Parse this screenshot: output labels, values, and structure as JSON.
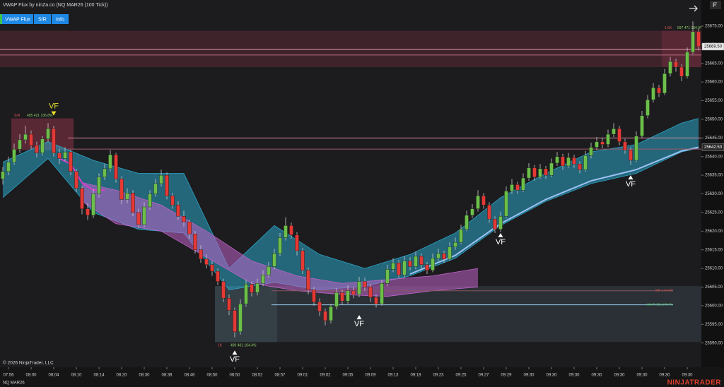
{
  "header": {
    "title": "VWAP Flux by ninZa.co (NQ MAR26 (100 Tick))",
    "buttons": [
      "VWAP Flux",
      "S/R",
      "Info"
    ]
  },
  "footer": {
    "copyright": "© 2026 NinjaTrader, LLC",
    "instrument": "NQ MAR26",
    "brand": "NINJATRADER"
  },
  "chart_data": {
    "type": "candlestick",
    "xlim": [
      -0.5,
      123.5
    ],
    "ylim": [
      25583.5,
      25682
    ],
    "up_color": "#6cc04a",
    "down_color": "#e53935",
    "yticks": [
      {
        "value": 25590,
        "label": "25590.00"
      },
      {
        "value": 25595,
        "label": "25595.00"
      },
      {
        "value": 25600,
        "label": "25600.00"
      },
      {
        "value": 25605,
        "label": "25605.00"
      },
      {
        "value": 25610,
        "label": "25610.00"
      },
      {
        "value": 25615,
        "label": "25615.00"
      },
      {
        "value": 25620,
        "label": "25620.00"
      },
      {
        "value": 25625,
        "label": "25625.00"
      },
      {
        "value": 25630,
        "label": "25630.00"
      },
      {
        "value": 25635,
        "label": "25635.00"
      },
      {
        "value": 25640,
        "label": "25640.00"
      },
      {
        "value": 25645,
        "label": "25645.00"
      },
      {
        "value": 25650,
        "label": "25650.00"
      },
      {
        "value": 25655,
        "label": "25655.00"
      },
      {
        "value": 25660,
        "label": "25660.00"
      },
      {
        "value": 25665,
        "label": "25665.00"
      },
      {
        "value": 25670,
        "label": "25670.00"
      },
      {
        "value": 25675,
        "label": "25675.00"
      }
    ],
    "xticks": [
      {
        "value": 1,
        "label": "07:56"
      },
      {
        "value": 5,
        "label": "08:00"
      },
      {
        "value": 9,
        "label": "08:04"
      },
      {
        "value": 13,
        "label": "08:10"
      },
      {
        "value": 17,
        "label": "08:14"
      },
      {
        "value": 21,
        "label": "08:20"
      },
      {
        "value": 25,
        "label": "08:30"
      },
      {
        "value": 29,
        "label": "08:38"
      },
      {
        "value": 33,
        "label": "08:46"
      },
      {
        "value": 37,
        "label": "08:50"
      },
      {
        "value": 41,
        "label": "08:50"
      },
      {
        "value": 45,
        "label": "08:52"
      },
      {
        "value": 49,
        "label": "08:57"
      },
      {
        "value": 53,
        "label": "09:01"
      },
      {
        "value": 57,
        "label": "09:02"
      },
      {
        "value": 61,
        "label": "09:05"
      },
      {
        "value": 65,
        "label": "09:09"
      },
      {
        "value": 69,
        "label": "09:13"
      },
      {
        "value": 73,
        "label": "09:18"
      },
      {
        "value": 77,
        "label": "09:23"
      },
      {
        "value": 81,
        "label": "09:25"
      },
      {
        "value": 85,
        "label": "09:27"
      },
      {
        "value": 89,
        "label": "09:29"
      },
      {
        "value": 93,
        "label": "09:30"
      },
      {
        "value": 97,
        "label": "09:30"
      },
      {
        "value": 101,
        "label": "09:30"
      },
      {
        "value": 105,
        "label": "09:30"
      },
      {
        "value": 109,
        "label": "09:30"
      },
      {
        "value": 113,
        "label": "09:30"
      },
      {
        "value": 117,
        "label": "09:30"
      },
      {
        "value": 121,
        "label": "09:30"
      }
    ],
    "candles": [
      [
        25634,
        25637.25,
        25632.5,
        25636
      ],
      [
        25636,
        25640,
        25635,
        25638.5
      ],
      [
        25638.5,
        25643.5,
        25637.75,
        25642
      ],
      [
        25642,
        25646,
        25641,
        25644.5
      ],
      [
        25644.5,
        25648.25,
        25643.5,
        25646
      ],
      [
        25646,
        25647,
        25642,
        25643
      ],
      [
        25643,
        25644,
        25639.75,
        25641
      ],
      [
        25641,
        25645.5,
        25640.25,
        25644.75
      ],
      [
        25644.75,
        25649,
        25644,
        25647.5
      ],
      [
        25647.5,
        25648.25,
        25640,
        25641
      ],
      [
        25641,
        25642,
        25638,
        25639.5
      ],
      [
        25639.5,
        25642.5,
        25638.75,
        25641.25
      ],
      [
        25641.25,
        25641.75,
        25635,
        25636
      ],
      [
        25636,
        25636.75,
        25630.5,
        25631.5
      ],
      [
        25631.5,
        25632,
        25624.5,
        25626
      ],
      [
        25626,
        25627.5,
        25623,
        25624.25
      ],
      [
        25624.25,
        25631.25,
        25623.5,
        25630
      ],
      [
        25630,
        25635.5,
        25629,
        25634.5
      ],
      [
        25634.5,
        25638,
        25633.75,
        25636.75
      ],
      [
        25636.75,
        25641.75,
        25636,
        25640.5
      ],
      [
        25640.5,
        25641,
        25633,
        25634
      ],
      [
        25634,
        25634.75,
        25627.25,
        25628.5
      ],
      [
        25628.5,
        25631.5,
        25627.5,
        25630.25
      ],
      [
        25630.25,
        25631,
        25624,
        25625
      ],
      [
        25625,
        25626,
        25620.75,
        25621.75
      ],
      [
        25621.75,
        25627.75,
        25621,
        25626.5
      ],
      [
        25626.5,
        25631,
        25625.75,
        25630
      ],
      [
        25630,
        25634,
        25629.25,
        25632.75
      ],
      [
        25632.75,
        25636.5,
        25632,
        25635
      ],
      [
        25635,
        25635.75,
        25628.5,
        25629.5
      ],
      [
        25629.5,
        25630.25,
        25626,
        25627
      ],
      [
        25627,
        25628,
        25623,
        25624
      ],
      [
        25624,
        25625.5,
        25621.25,
        25622.5
      ],
      [
        25622.5,
        25623,
        25618,
        25619.25
      ],
      [
        25619.25,
        25620,
        25614,
        25615
      ],
      [
        25615,
        25616.25,
        25611.5,
        25612.5
      ],
      [
        25612.5,
        25613.75,
        25610,
        25611
      ],
      [
        25611,
        25612,
        25608,
        25609.25
      ],
      [
        25609.25,
        25610,
        25605.5,
        25606.5
      ],
      [
        25606.5,
        25607.25,
        25601,
        25602
      ],
      [
        25602,
        25603,
        25597.5,
        25598.75
      ],
      [
        25598.75,
        25599.5,
        25591.5,
        25593
      ],
      [
        25593,
        25601.75,
        25592.25,
        25600.5
      ],
      [
        25600.5,
        25607,
        25599.75,
        25605.75
      ],
      [
        25605.75,
        25606.5,
        25602.5,
        25603.5
      ],
      [
        25603.5,
        25607.25,
        25602.75,
        25606
      ],
      [
        25606,
        25609.5,
        25605.25,
        25608.25
      ],
      [
        25608.25,
        25611.75,
        25607.5,
        25610.5
      ],
      [
        25610.5,
        25615.25,
        25609.75,
        25614
      ],
      [
        25614,
        25619.5,
        25613.25,
        25618.25
      ],
      [
        25618.25,
        25623.75,
        25617.5,
        25621.5
      ],
      [
        25621.5,
        25622.25,
        25618,
        25619
      ],
      [
        25619,
        25619.75,
        25613.5,
        25614.75
      ],
      [
        25614.75,
        25615.5,
        25608.5,
        25609.5
      ],
      [
        25609.5,
        25610.25,
        25603,
        25604.25
      ],
      [
        25604.25,
        25605,
        25600,
        25601
      ],
      [
        25601,
        25602,
        25597.25,
        25598.5
      ],
      [
        25598.5,
        25599.25,
        25594.75,
        25596
      ],
      [
        25596,
        25600.5,
        25595.25,
        25599.75
      ],
      [
        25599.75,
        25604.75,
        25599,
        25603.5
      ],
      [
        25603.5,
        25604.25,
        25600.25,
        25601.25
      ],
      [
        25601.25,
        25605.5,
        25600.5,
        25604
      ],
      [
        25604,
        25605,
        25602,
        25603
      ],
      [
        25603,
        25607.75,
        25602.25,
        25606.5
      ],
      [
        25606.5,
        25607.5,
        25604,
        25605
      ],
      [
        25605,
        25605.75,
        25601,
        25602.25
      ],
      [
        25602.25,
        25603,
        25599.5,
        25600.5
      ],
      [
        25600.5,
        25607,
        25600,
        25606
      ],
      [
        25606,
        25611,
        25605.25,
        25609.75
      ],
      [
        25609.75,
        25612.75,
        25609,
        25611.5
      ],
      [
        25611.5,
        25612.25,
        25607.5,
        25608.25
      ],
      [
        25608.25,
        25613.25,
        25607.5,
        25612
      ],
      [
        25612,
        25613,
        25609.5,
        25610.5
      ],
      [
        25610.5,
        25614.5,
        25609.75,
        25613.25
      ],
      [
        25613.25,
        25614,
        25610,
        25611
      ],
      [
        25611,
        25611.75,
        25608.5,
        25609.5
      ],
      [
        25609.5,
        25614,
        25609,
        25612.75
      ],
      [
        25612.75,
        25615.25,
        25612,
        25614
      ],
      [
        25614,
        25614.75,
        25611.5,
        25612.5
      ],
      [
        25612.5,
        25617,
        25612,
        25615.75
      ],
      [
        25615.75,
        25618.25,
        25615,
        25617
      ],
      [
        25617,
        25621.75,
        25616.5,
        25620.5
      ],
      [
        25620.5,
        25625.5,
        25620,
        25624.25
      ],
      [
        25624.25,
        25627.25,
        25623.5,
        25626
      ],
      [
        25626,
        25631,
        25625.25,
        25629.5
      ],
      [
        25629.5,
        25630.25,
        25626,
        25627
      ],
      [
        25627,
        25627.75,
        25622.25,
        25623.25
      ],
      [
        25623.25,
        25624,
        25619.5,
        25620.5
      ],
      [
        25620.5,
        25625.25,
        25619.75,
        25624
      ],
      [
        25624,
        25632,
        25623.5,
        25630.75
      ],
      [
        25630.75,
        25634,
        25630,
        25632.5
      ],
      [
        25632.5,
        25633.25,
        25630,
        25631
      ],
      [
        25631,
        25635.5,
        25630.5,
        25634.25
      ],
      [
        25634.25,
        25638.25,
        25633.5,
        25637
      ],
      [
        25637,
        25637.75,
        25633.5,
        25634.5
      ],
      [
        25634.5,
        25638,
        25634,
        25636.75
      ],
      [
        25636.75,
        25637.5,
        25634,
        25635
      ],
      [
        25635,
        25639.5,
        25634.5,
        25638.25
      ],
      [
        25638.25,
        25641.25,
        25637.5,
        25640
      ],
      [
        25640,
        25640.75,
        25636.5,
        25637.5
      ],
      [
        25637.5,
        25641,
        25637,
        25639.75
      ],
      [
        25639.75,
        25640.5,
        25637,
        25638
      ],
      [
        25638,
        25638.75,
        25635.5,
        25636.5
      ],
      [
        25636.5,
        25641.5,
        25636,
        25640.25
      ],
      [
        25640.25,
        25643.75,
        25639.5,
        25642.5
      ],
      [
        25642.5,
        25645.25,
        25641.75,
        25644
      ],
      [
        25644,
        25645,
        25642.25,
        25643.25
      ],
      [
        25643.25,
        25647.25,
        25642.5,
        25646
      ],
      [
        25646,
        25649,
        25645.25,
        25647.5
      ],
      [
        25647.5,
        25648.25,
        25643,
        25644
      ],
      [
        25644,
        25644.75,
        25640.75,
        25641.75
      ],
      [
        25641.75,
        25642.5,
        25637.75,
        25639
      ],
      [
        25639,
        25646.75,
        25638.5,
        25645.5
      ],
      [
        25645.5,
        25652.25,
        25645,
        25651
      ],
      [
        25651,
        25656.5,
        25650.25,
        25655.25
      ],
      [
        25655.25,
        25659.75,
        25654.5,
        25658.5
      ],
      [
        25658.5,
        25659.25,
        25656,
        25657
      ],
      [
        25657,
        25663.5,
        25656.5,
        25662.25
      ],
      [
        25662.25,
        25666.75,
        25661.5,
        25665.5
      ],
      [
        25665.5,
        25666.25,
        25662.75,
        25664
      ],
      [
        25664,
        25664.75,
        25660.25,
        25661.5
      ],
      [
        25661.5,
        25669.25,
        25661,
        25668
      ],
      [
        25668,
        25676.25,
        25667.5,
        25673.5
      ],
      [
        25673.5,
        25674.25,
        25668.5,
        25669.5
      ]
    ],
    "zones": [
      {
        "from": 0,
        "to": 123,
        "core_from": 117,
        "core_to": 123,
        "low": 25664,
        "high": 25673.75,
        "color": "#6a2c3c",
        "tag": "1.5K",
        "stats": "597 471 134.9%",
        "tag_side": "top"
      },
      {
        "from": 2,
        "to": 12,
        "core_from": 2,
        "core_to": 12,
        "low": 25641.75,
        "high": 25650.25,
        "color": "#6a2c3c",
        "tag": "S/R",
        "stats": "495 421 136.8%",
        "tag_side": "top"
      },
      {
        "from": 38,
        "to": 123,
        "core_from": 38,
        "core_to": 48,
        "low": 25590.25,
        "high": 25605.25,
        "color": "#3c4a52",
        "tag": "1K",
        "stats": "490 401 164.4%",
        "tag_side": "bottom"
      }
    ],
    "levels": [
      {
        "price": 25668.75,
        "from": 0,
        "to": 123,
        "color": "#e39aae"
      },
      {
        "price": 25667.25,
        "from": 0,
        "to": 123,
        "color": "#b86a80"
      },
      {
        "price": 25645,
        "from": 12,
        "to": 123,
        "color": "#d98aa0"
      },
      {
        "price": 25642,
        "from": 12,
        "to": 123,
        "color": "#9a5868"
      },
      {
        "price": 25604,
        "from": 48,
        "to": 118,
        "color": "#8a5560",
        "label": "S/R 1 34.5%",
        "label_color": "#e0574f"
      },
      {
        "price": 25600.25,
        "from": 48,
        "to": 118,
        "color": "#9ad0f0",
        "label": "VWAP 30 | 176.7%",
        "label_color": "#5fcf6a"
      }
    ],
    "bands": [
      {
        "color": "#2ba6c8",
        "x": [
          0,
          8,
          16,
          24,
          32,
          40,
          48,
          56,
          64,
          72,
          80,
          88,
          96,
          104,
          112,
          120,
          123
        ],
        "upper": [
          25638.5,
          25644,
          25639,
          25635.5,
          25635.5,
          25610,
          25621.5,
          25613.75,
          25610,
          25613.75,
          25619.5,
          25629,
          25635.5,
          25641.25,
          25643.25,
          25649,
          25650.25
        ],
        "lower": [
          25629,
          25639.5,
          25625,
          25620.5,
          25619.5,
          25604.25,
          25606.25,
          25604.25,
          25605.25,
          25608,
          25612.75,
          25621.5,
          25628,
          25632.75,
          25635.5,
          25641.25,
          25642.25
        ]
      },
      {
        "color": "#c062c8",
        "x": [
          14,
          20,
          28,
          36,
          44,
          52,
          60,
          68,
          76,
          84
        ],
        "upper": [
          25633,
          25631,
          25627,
          25620,
          25612,
          25608,
          25606,
          25607,
          25608,
          25610
        ],
        "lower": [
          25628,
          25622,
          25620,
          25613,
          25606,
          25604,
          25603,
          25602.5,
          25604,
          25605
        ]
      }
    ],
    "lines": [
      {
        "color": "#d23fd0",
        "x": [
          10,
          12,
          14,
          16,
          18
        ],
        "values": [
          25639.5,
          25638,
          25633,
          25631,
          25631
        ]
      },
      {
        "color": "#9cc2f2",
        "x": [
          72,
          80,
          88,
          96,
          104,
          112,
          120,
          123
        ],
        "values": [
          25608.5,
          25613.5,
          25622,
          25628.5,
          25633.5,
          25636.5,
          25641.5,
          25642.5
        ]
      }
    ],
    "markers": [
      {
        "label": "VF",
        "bar": 9,
        "price": 25651,
        "dir": "down",
        "color": "#e8e02a"
      },
      {
        "label": "VF",
        "bar": 41,
        "price": 25588,
        "dir": "up",
        "color": "#ffffff"
      },
      {
        "label": "VF",
        "bar": 63,
        "price": 25597.5,
        "dir": "up",
        "color": "#ffffff"
      },
      {
        "label": "VF",
        "bar": 88,
        "price": 25619.5,
        "dir": "up",
        "color": "#ffffff"
      },
      {
        "label": "VF",
        "bar": 111,
        "price": 25635,
        "dir": "up",
        "color": "#ffffff"
      }
    ],
    "price_labels": [
      {
        "value": 25669.5,
        "label": "25669.50"
      },
      {
        "value": 25642.5,
        "label": "25642.50"
      }
    ]
  }
}
